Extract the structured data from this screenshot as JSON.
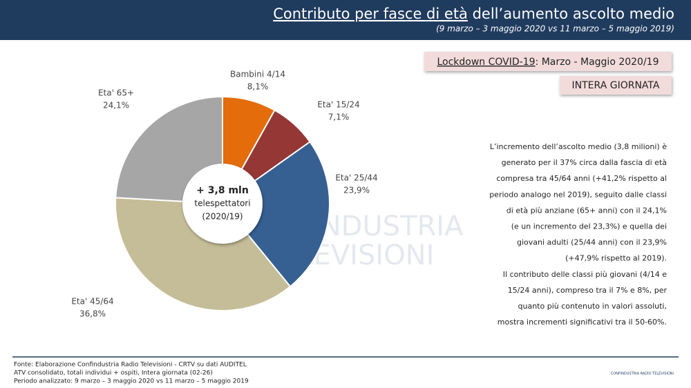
{
  "header": {
    "title_underlined": "Contributo per fasce di età",
    "title_rest": " dell’aumento ascolto medio",
    "subtitle": "(9 marzo – 3 maggio 2020 vs 11 marzo – 5 maggio 2019)"
  },
  "badge": {
    "underlined": "Lockdown COVID-19",
    "rest": ": Marzo - Maggio 2020/19",
    "period": "INTERA GIORNATA"
  },
  "chart_data": {
    "type": "pie",
    "categories": [
      "Bambini 4/14",
      "Eta' 15/24",
      "Eta' 25/44",
      "Eta' 45/64",
      "Eta' 65+"
    ],
    "values": [
      8.1,
      7.1,
      23.9,
      36.8,
      24.1
    ],
    "value_labels": [
      "8,1%",
      "7,1%",
      "23,9%",
      "36,8%",
      "24,1%"
    ],
    "colors": [
      "#e46c0a",
      "#953735",
      "#376092",
      "#c4bd97",
      "#a6a6a6"
    ],
    "center_text": [
      "+ 3,8 mln",
      "telespettatori",
      "(2020/19)"
    ]
  },
  "paragraph": [
    "L’incremento dell’ascolto medio (3,8 milioni) è",
    "generato per il 37% circa dalla fascia di età",
    "compresa tra 45/64 anni (+41,2% rispetto al",
    "periodo analogo nel 2019), seguito dalle classi",
    "di età più anziane (65+ anni) con il 24,1%",
    "(e un incremento del 23,3%) e quella dei",
    "giovani adulti (25/44 anni) con il 23,9%",
    "(+47,9% rispetto al 2019).",
    "Il contributo delle classi più giovani (4/14 e",
    "15/24 anni), compreso tra il 7% e 8%, per",
    "quanto più contenuto in valori assoluti,",
    "mostra incrementi significativi tra il 50-60%."
  ],
  "watermark": [
    "CONFINDUSTRIA",
    "TELEVISIONI"
  ],
  "footer": [
    "Fonte: Elaborazione Confindustria Radio Televisioni - CRTV su dati AUDITEL",
    "ATV consolidato, totali individui + ospiti, Intera giornata (02-26)",
    "Periodo analizzato: 9 marzo – 3 maggio 2020 vs 11 marzo – 5 maggio 2019"
  ],
  "logo": "CONFINDUSTRIA RADIO TELEVISIONI"
}
